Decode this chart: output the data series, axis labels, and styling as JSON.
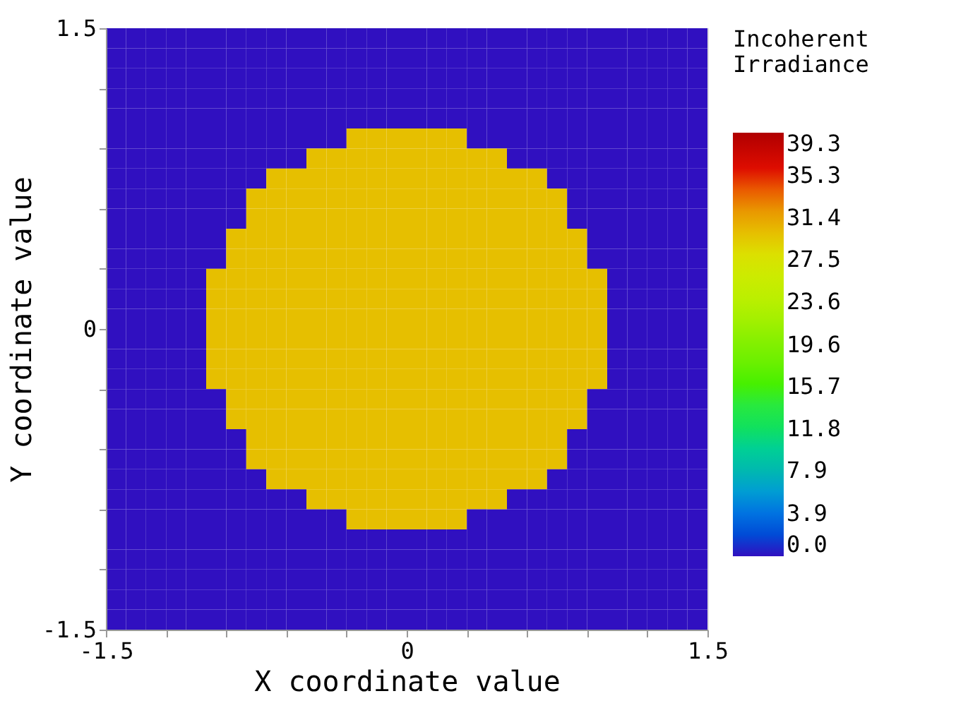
{
  "chart_data": {
    "type": "heatmap",
    "xlabel": "X coordinate value",
    "ylabel": "Y coordinate value",
    "legend_title": "Incoherent Irradiance",
    "x": [
      -1.45,
      -1.35,
      -1.25,
      -1.15,
      -1.05,
      -0.95,
      -0.85,
      -0.75,
      -0.65,
      -0.55,
      -0.45,
      -0.35,
      -0.25,
      -0.15,
      -0.05,
      0.05,
      0.15,
      0.25,
      0.35,
      0.45,
      0.55,
      0.65,
      0.75,
      0.85,
      0.95,
      1.05,
      1.15,
      1.25,
      1.35,
      1.45
    ],
    "y": [
      1.45,
      1.35,
      1.25,
      1.15,
      1.05,
      0.95,
      0.85,
      0.75,
      0.65,
      0.55,
      0.45,
      0.35,
      0.25,
      0.15,
      0.05,
      -0.05,
      -0.15,
      -0.25,
      -0.35,
      -0.45,
      -0.55,
      -0.65,
      -0.75,
      -0.85,
      -0.95,
      -1.05,
      -1.15,
      -1.25,
      -1.35,
      -1.45
    ],
    "xlim": [
      -1.5,
      1.5
    ],
    "ylim": [
      -1.5,
      1.5
    ],
    "xticks": [
      -1.5,
      {
        "value": -1.2,
        "label": null
      },
      {
        "value": -0.9,
        "label": null
      },
      {
        "value": -0.6,
        "label": null
      },
      {
        "value": -0.3,
        "label": null
      },
      0,
      {
        "value": 0.3,
        "label": null
      },
      {
        "value": 0.6,
        "label": null
      },
      {
        "value": 0.9,
        "label": null
      },
      {
        "value": 1.2,
        "label": null
      },
      1.5
    ],
    "yticks": [
      -1.5,
      {
        "value": -1.2,
        "label": null
      },
      {
        "value": -0.9,
        "label": null
      },
      {
        "value": -0.6,
        "label": null
      },
      {
        "value": -0.3,
        "label": null
      },
      0,
      {
        "value": 0.3,
        "label": null
      },
      {
        "value": 0.6,
        "label": null
      },
      {
        "value": 0.9,
        "label": null
      },
      {
        "value": 1.2,
        "label": null
      },
      1.5
    ],
    "cticks": [
      {
        "value": 0,
        "label": "0.0"
      },
      3.9,
      7.9,
      11.8,
      15.7,
      19.6,
      23.6,
      27.5,
      31.4,
      35.3,
      39.3
    ],
    "colors": [
      "#3010c0",
      "#0070e0",
      "#00b8b0",
      "#10e060",
      "#40f000",
      "#80f000",
      "#b8f000",
      "#d8e800",
      "#e8a800",
      "#e81000",
      "#b00000"
    ],
    "clim": [
      0,
      39.3
    ],
    "grid": false,
    "cells": [
      [
        0,
        0,
        0,
        0,
        0,
        0,
        0,
        0,
        0,
        0,
        0,
        0,
        0,
        0,
        0,
        0,
        0,
        0,
        0,
        0,
        0,
        0,
        0,
        0,
        0,
        0,
        0,
        0,
        0,
        0
      ],
      [
        0,
        0,
        0,
        0,
        0,
        0,
        0,
        0,
        0,
        0,
        0,
        0,
        0,
        0,
        0,
        0,
        0,
        0,
        0,
        0,
        0,
        0,
        0,
        0,
        0,
        0,
        0,
        0,
        0,
        0
      ],
      [
        0,
        0,
        0,
        0,
        0,
        0,
        0,
        0,
        0,
        0,
        0,
        0,
        0,
        0,
        0,
        0,
        0,
        0,
        0,
        0,
        0,
        0,
        0,
        0,
        0,
        0,
        0,
        0,
        0,
        0
      ],
      [
        0,
        0,
        0,
        0,
        0,
        0,
        0,
        0,
        0,
        0,
        0,
        0,
        0,
        0,
        0,
        0,
        0,
        0,
        0,
        0,
        0,
        0,
        0,
        0,
        0,
        0,
        0,
        0,
        0,
        0
      ],
      [
        0,
        0,
        0,
        0,
        0,
        0,
        0,
        0,
        0,
        0,
        0,
        0,
        0,
        0,
        0,
        0,
        0,
        0,
        0,
        0,
        0,
        0,
        0,
        0,
        0,
        0,
        0,
        0,
        0,
        0
      ],
      [
        0,
        0,
        0,
        0,
        0,
        0,
        0,
        0,
        0,
        0,
        0,
        0,
        30,
        30,
        30,
        30,
        30,
        30,
        0,
        0,
        0,
        0,
        0,
        0,
        0,
        0,
        0,
        0,
        0,
        0
      ],
      [
        0,
        0,
        0,
        0,
        0,
        0,
        0,
        0,
        0,
        0,
        30,
        30,
        30,
        30,
        30,
        30,
        30,
        30,
        30,
        30,
        0,
        0,
        0,
        0,
        0,
        0,
        0,
        0,
        0,
        0
      ],
      [
        0,
        0,
        0,
        0,
        0,
        0,
        0,
        0,
        30,
        30,
        30,
        30,
        30,
        30,
        30,
        30,
        30,
        30,
        30,
        30,
        30,
        30,
        0,
        0,
        0,
        0,
        0,
        0,
        0,
        0
      ],
      [
        0,
        0,
        0,
        0,
        0,
        0,
        0,
        30,
        30,
        30,
        30,
        30,
        30,
        30,
        30,
        30,
        30,
        30,
        30,
        30,
        30,
        30,
        30,
        0,
        0,
        0,
        0,
        0,
        0,
        0
      ],
      [
        0,
        0,
        0,
        0,
        0,
        0,
        0,
        30,
        30,
        30,
        30,
        30,
        30,
        30,
        30,
        30,
        30,
        30,
        30,
        30,
        30,
        30,
        30,
        0,
        0,
        0,
        0,
        0,
        0,
        0
      ],
      [
        0,
        0,
        0,
        0,
        0,
        0,
        30,
        30,
        30,
        30,
        30,
        30,
        30,
        30,
        30,
        30,
        30,
        30,
        30,
        30,
        30,
        30,
        30,
        30,
        0,
        0,
        0,
        0,
        0,
        0
      ],
      [
        0,
        0,
        0,
        0,
        0,
        0,
        30,
        30,
        30,
        30,
        30,
        30,
        30,
        30,
        30,
        30,
        30,
        30,
        30,
        30,
        30,
        30,
        30,
        30,
        0,
        0,
        0,
        0,
        0,
        0
      ],
      [
        0,
        0,
        0,
        0,
        0,
        30,
        30,
        30,
        30,
        30,
        30,
        30,
        30,
        30,
        30,
        30,
        30,
        30,
        30,
        30,
        30,
        30,
        30,
        30,
        30,
        0,
        0,
        0,
        0,
        0
      ],
      [
        0,
        0,
        0,
        0,
        0,
        30,
        30,
        30,
        30,
        30,
        30,
        30,
        30,
        30,
        30,
        30,
        30,
        30,
        30,
        30,
        30,
        30,
        30,
        30,
        30,
        0,
        0,
        0,
        0,
        0
      ],
      [
        0,
        0,
        0,
        0,
        0,
        30,
        30,
        30,
        30,
        30,
        30,
        30,
        30,
        30,
        30,
        30,
        30,
        30,
        30,
        30,
        30,
        30,
        30,
        30,
        30,
        0,
        0,
        0,
        0,
        0
      ],
      [
        0,
        0,
        0,
        0,
        0,
        30,
        30,
        30,
        30,
        30,
        30,
        30,
        30,
        30,
        30,
        30,
        30,
        30,
        30,
        30,
        30,
        30,
        30,
        30,
        30,
        0,
        0,
        0,
        0,
        0
      ],
      [
        0,
        0,
        0,
        0,
        0,
        30,
        30,
        30,
        30,
        30,
        30,
        30,
        30,
        30,
        30,
        30,
        30,
        30,
        30,
        30,
        30,
        30,
        30,
        30,
        30,
        0,
        0,
        0,
        0,
        0
      ],
      [
        0,
        0,
        0,
        0,
        0,
        30,
        30,
        30,
        30,
        30,
        30,
        30,
        30,
        30,
        30,
        30,
        30,
        30,
        30,
        30,
        30,
        30,
        30,
        30,
        30,
        0,
        0,
        0,
        0,
        0
      ],
      [
        0,
        0,
        0,
        0,
        0,
        0,
        30,
        30,
        30,
        30,
        30,
        30,
        30,
        30,
        30,
        30,
        30,
        30,
        30,
        30,
        30,
        30,
        30,
        30,
        0,
        0,
        0,
        0,
        0,
        0
      ],
      [
        0,
        0,
        0,
        0,
        0,
        0,
        30,
        30,
        30,
        30,
        30,
        30,
        30,
        30,
        30,
        30,
        30,
        30,
        30,
        30,
        30,
        30,
        30,
        30,
        0,
        0,
        0,
        0,
        0,
        0
      ],
      [
        0,
        0,
        0,
        0,
        0,
        0,
        0,
        30,
        30,
        30,
        30,
        30,
        30,
        30,
        30,
        30,
        30,
        30,
        30,
        30,
        30,
        30,
        30,
        0,
        0,
        0,
        0,
        0,
        0,
        0
      ],
      [
        0,
        0,
        0,
        0,
        0,
        0,
        0,
        30,
        30,
        30,
        30,
        30,
        30,
        30,
        30,
        30,
        30,
        30,
        30,
        30,
        30,
        30,
        30,
        0,
        0,
        0,
        0,
        0,
        0,
        0
      ],
      [
        0,
        0,
        0,
        0,
        0,
        0,
        0,
        0,
        30,
        30,
        30,
        30,
        30,
        30,
        30,
        30,
        30,
        30,
        30,
        30,
        30,
        30,
        0,
        0,
        0,
        0,
        0,
        0,
        0,
        0
      ],
      [
        0,
        0,
        0,
        0,
        0,
        0,
        0,
        0,
        0,
        0,
        30,
        30,
        30,
        30,
        30,
        30,
        30,
        30,
        30,
        30,
        0,
        0,
        0,
        0,
        0,
        0,
        0,
        0,
        0,
        0
      ],
      [
        0,
        0,
        0,
        0,
        0,
        0,
        0,
        0,
        0,
        0,
        0,
        0,
        30,
        30,
        30,
        30,
        30,
        30,
        0,
        0,
        0,
        0,
        0,
        0,
        0,
        0,
        0,
        0,
        0,
        0
      ],
      [
        0,
        0,
        0,
        0,
        0,
        0,
        0,
        0,
        0,
        0,
        0,
        0,
        0,
        0,
        0,
        0,
        0,
        0,
        0,
        0,
        0,
        0,
        0,
        0,
        0,
        0,
        0,
        0,
        0,
        0
      ],
      [
        0,
        0,
        0,
        0,
        0,
        0,
        0,
        0,
        0,
        0,
        0,
        0,
        0,
        0,
        0,
        0,
        0,
        0,
        0,
        0,
        0,
        0,
        0,
        0,
        0,
        0,
        0,
        0,
        0,
        0
      ],
      [
        0,
        0,
        0,
        0,
        0,
        0,
        0,
        0,
        0,
        0,
        0,
        0,
        0,
        0,
        0,
        0,
        0,
        0,
        0,
        0,
        0,
        0,
        0,
        0,
        0,
        0,
        0,
        0,
        0,
        0
      ],
      [
        0,
        0,
        0,
        0,
        0,
        0,
        0,
        0,
        0,
        0,
        0,
        0,
        0,
        0,
        0,
        0,
        0,
        0,
        0,
        0,
        0,
        0,
        0,
        0,
        0,
        0,
        0,
        0,
        0,
        0
      ],
      [
        0,
        0,
        0,
        0,
        0,
        0,
        0,
        0,
        0,
        0,
        0,
        0,
        0,
        0,
        0,
        0,
        0,
        0,
        0,
        0,
        0,
        0,
        0,
        0,
        0,
        0,
        0,
        0,
        0,
        0
      ]
    ]
  }
}
